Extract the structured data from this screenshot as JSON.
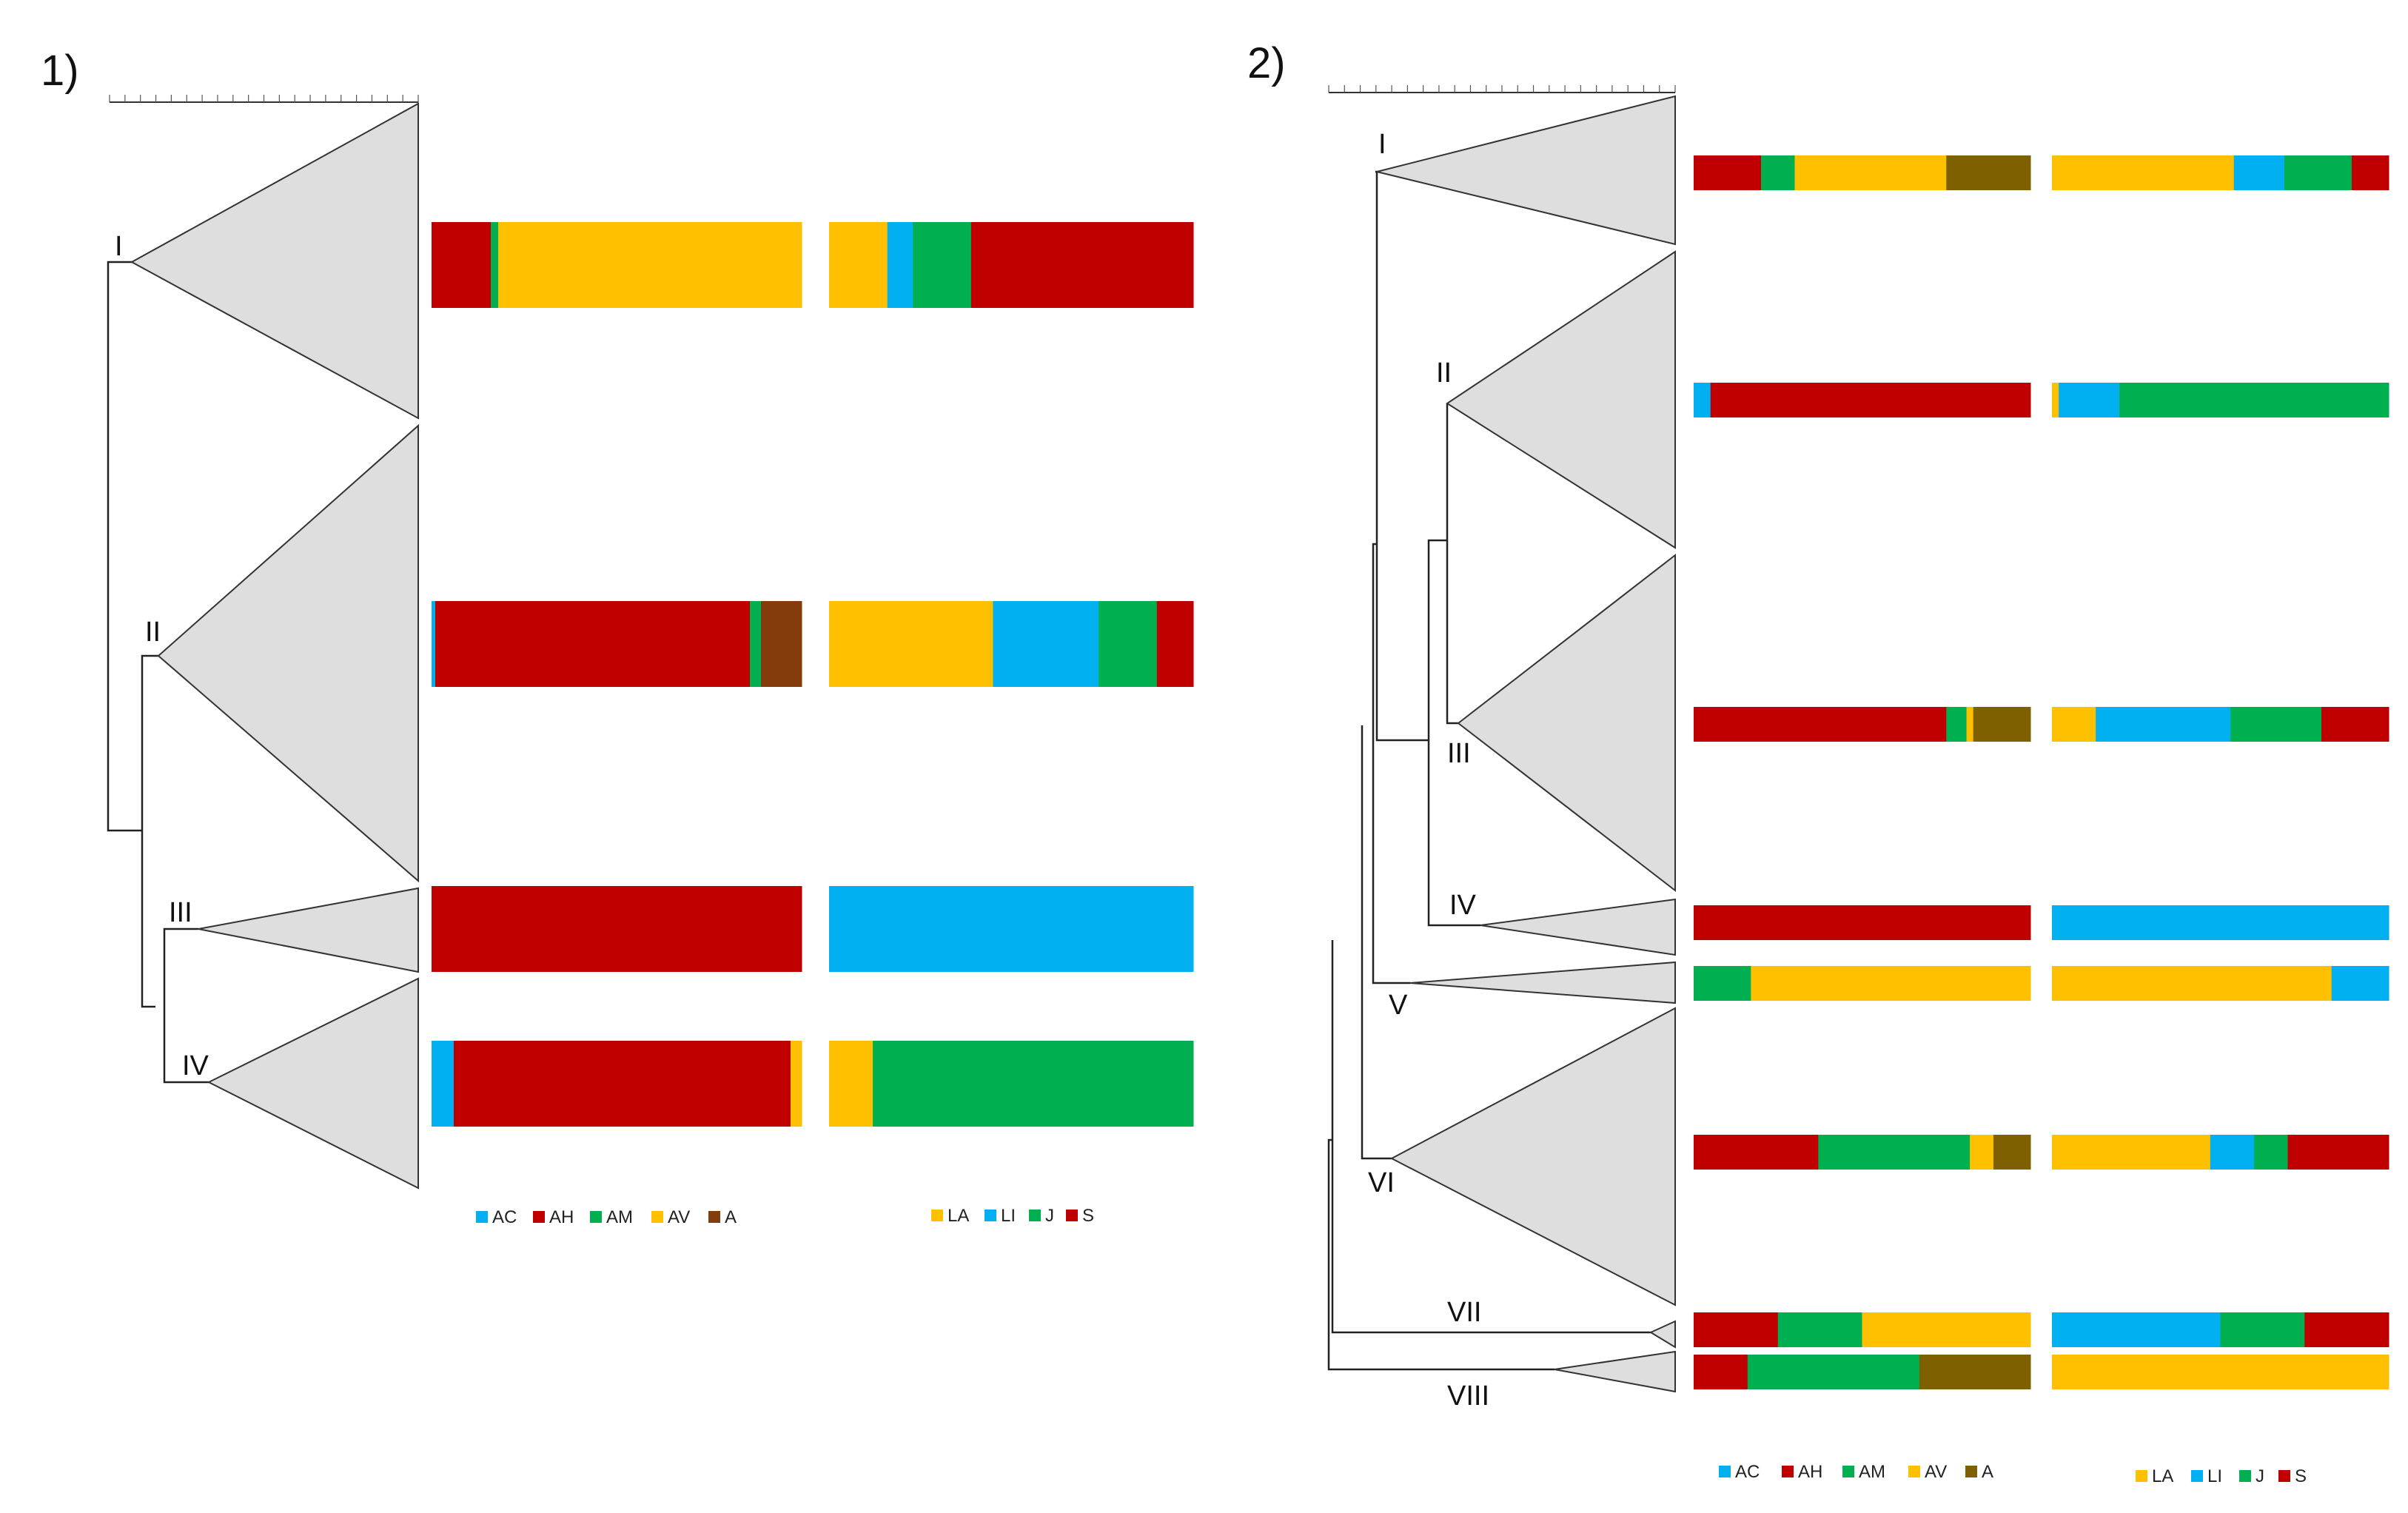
{
  "colors": {
    "AC": "#00b0f0",
    "AH": "#c00000",
    "AM": "#00b050",
    "AV": "#ffc000",
    "A_panel1": "#843c0c",
    "A_panel2": "#7f6000",
    "LA": "#ffc000",
    "LI": "#00b0f0",
    "J": "#00b050",
    "S": "#c00000"
  },
  "chart_data": [
    {
      "type": "bar",
      "subtype": "stacked-proportion-dendrogram",
      "title": "1)",
      "clades": [
        "I",
        "II",
        "III",
        "IV"
      ],
      "series_group_1": {
        "legend": [
          "AC",
          "AH",
          "AM",
          "AV",
          "A"
        ],
        "values": {
          "I": [
            0,
            16,
            2,
            82,
            0
          ],
          "II": [
            1,
            85,
            3,
            0,
            11
          ],
          "III": [
            0,
            100,
            0,
            0,
            0
          ],
          "IV": [
            6,
            91,
            0,
            3,
            0
          ]
        }
      },
      "series_group_2": {
        "legend": [
          "LA",
          "LI",
          "J",
          "S"
        ],
        "values": {
          "I": [
            16,
            7,
            16,
            61
          ],
          "II": [
            45,
            29,
            16,
            10
          ],
          "III": [
            0,
            100,
            0,
            0
          ],
          "IV": [
            12,
            0,
            88,
            0
          ]
        }
      }
    },
    {
      "type": "bar",
      "subtype": "stacked-proportion-dendrogram",
      "title": "2)",
      "clades": [
        "I",
        "II",
        "III",
        "IV",
        "V",
        "VI",
        "VII",
        "VIII"
      ],
      "series_group_1": {
        "legend": [
          "AC",
          "AH",
          "AM",
          "AV",
          "A"
        ],
        "values": {
          "I": [
            0,
            20,
            10,
            45,
            25
          ],
          "II": [
            5,
            95,
            0,
            0,
            0
          ],
          "III": [
            0,
            75,
            6,
            2,
            17
          ],
          "IV": [
            0,
            100,
            0,
            0,
            0
          ],
          "V": [
            0,
            0,
            17,
            83,
            0
          ],
          "VI": [
            0,
            37,
            45,
            7,
            11
          ],
          "VII": [
            0,
            25,
            25,
            50,
            0
          ],
          "VIII": [
            0,
            16,
            51,
            0,
            33
          ]
        }
      },
      "series_group_2": {
        "legend": [
          "LA",
          "LI",
          "J",
          "S"
        ],
        "values": {
          "I": [
            54,
            15,
            20,
            11
          ],
          "II": [
            2,
            18,
            80,
            0
          ],
          "III": [
            13,
            40,
            27,
            20
          ],
          "IV": [
            0,
            100,
            0,
            0
          ],
          "V": [
            83,
            17,
            0,
            0
          ],
          "VI": [
            47,
            13,
            10,
            30
          ],
          "VII": [
            0,
            50,
            25,
            25
          ],
          "VIII": [
            100,
            0,
            0,
            0
          ]
        }
      }
    }
  ]
}
